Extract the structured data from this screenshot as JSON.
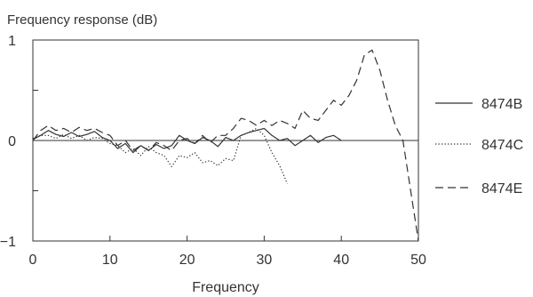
{
  "chart_data": {
    "type": "line",
    "title": "",
    "ylabel": "Frequency response (dB)",
    "xlabel": "Frequency",
    "xlim": [
      0,
      50
    ],
    "ylim": [
      -1,
      1
    ],
    "x_ticks": [
      0,
      10,
      20,
      30,
      40,
      50
    ],
    "y_ticks": [
      1,
      0.5,
      0,
      -0.5,
      -1
    ],
    "y_tick_labels": [
      "1",
      "",
      "0",
      "",
      "−1"
    ],
    "grid": false,
    "zero_line": true,
    "legend_position": "right",
    "series": [
      {
        "name": "8474B",
        "dash": "solid",
        "x": [
          0,
          1,
          2,
          3,
          4,
          5,
          6,
          7,
          8,
          9,
          10,
          11,
          12,
          13,
          14,
          15,
          16,
          17,
          18,
          19,
          20,
          21,
          22,
          23,
          24,
          25,
          26,
          27,
          28,
          29,
          30,
          31,
          32,
          33,
          34,
          35,
          36,
          37,
          38,
          39,
          40
        ],
        "y": [
          0.01,
          0.05,
          0.1,
          0.06,
          0.04,
          0.08,
          0.04,
          0.06,
          0.09,
          0.03,
          0.0,
          -0.08,
          -0.03,
          -0.12,
          -0.05,
          -0.1,
          -0.04,
          -0.08,
          -0.05,
          0.05,
          0.0,
          -0.03,
          0.03,
          0.0,
          -0.06,
          0.03,
          0.0,
          0.05,
          0.08,
          0.1,
          0.12,
          0.05,
          0.0,
          0.02,
          -0.05,
          0.0,
          0.05,
          -0.02,
          0.03,
          0.05,
          0.0
        ]
      },
      {
        "name": "8474C",
        "dash": "dotted",
        "x": [
          0,
          1,
          2,
          3,
          4,
          5,
          6,
          7,
          8,
          9,
          10,
          11,
          12,
          13,
          14,
          15,
          16,
          17,
          18,
          19,
          20,
          21,
          22,
          23,
          24,
          25,
          26,
          27,
          28,
          29,
          30,
          31,
          32,
          33
        ],
        "y": [
          0.02,
          0.05,
          0.05,
          0.02,
          0.06,
          0.02,
          0.05,
          0.0,
          0.03,
          0.02,
          -0.03,
          -0.05,
          -0.12,
          -0.08,
          -0.15,
          -0.06,
          -0.12,
          -0.15,
          -0.26,
          -0.15,
          -0.17,
          -0.12,
          -0.22,
          -0.2,
          -0.25,
          -0.18,
          -0.2,
          0.05,
          0.08,
          0.12,
          0.05,
          -0.12,
          -0.25,
          -0.43
        ]
      },
      {
        "name": "8474E",
        "dash": "dashed",
        "x": [
          0,
          1,
          2,
          3,
          4,
          5,
          6,
          7,
          8,
          9,
          10,
          11,
          12,
          13,
          14,
          15,
          16,
          17,
          18,
          19,
          20,
          21,
          22,
          23,
          24,
          25,
          26,
          27,
          28,
          29,
          30,
          31,
          32,
          33,
          34,
          35,
          36,
          37,
          38,
          39,
          40,
          41,
          42,
          43,
          44,
          45,
          46,
          47,
          48,
          49,
          50
        ],
        "y": [
          0.0,
          0.1,
          0.15,
          0.1,
          0.12,
          0.08,
          0.13,
          0.1,
          0.12,
          0.08,
          0.05,
          -0.05,
          0.0,
          -0.1,
          -0.05,
          -0.1,
          -0.02,
          -0.05,
          -0.1,
          0.0,
          0.02,
          -0.03,
          0.05,
          -0.02,
          0.05,
          0.05,
          0.12,
          0.22,
          0.2,
          0.15,
          0.2,
          0.15,
          0.2,
          0.17,
          0.12,
          0.3,
          0.22,
          0.2,
          0.3,
          0.4,
          0.35,
          0.45,
          0.6,
          0.85,
          0.9,
          0.7,
          0.4,
          0.15,
          0.0,
          -0.5,
          -1.0
        ]
      }
    ]
  }
}
